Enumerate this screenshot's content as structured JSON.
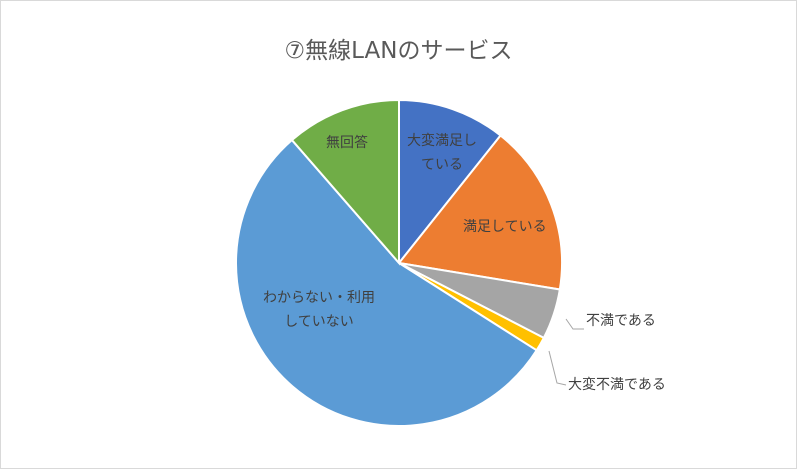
{
  "chart_data": {
    "type": "pie",
    "title": "⑦無線LANのサービス",
    "categories": [
      "大変満足している",
      "満足している",
      "不満である",
      "大変不満である",
      "わからない・利用していない",
      "無回答"
    ],
    "labels_display": [
      "大変満足し\nている",
      "満足している",
      "不満である",
      "大変不満である",
      "わからない・\n利用していない",
      "無回答"
    ],
    "values": [
      10.7,
      16.9,
      5.0,
      1.4,
      54.6,
      11.4
    ],
    "colors": [
      "#4472C4",
      "#ED7D31",
      "#A5A5A5",
      "#FFC000",
      "#5B9BD5",
      "#70AD47"
    ],
    "legend": "none",
    "start_angle": "top, clockwise"
  }
}
